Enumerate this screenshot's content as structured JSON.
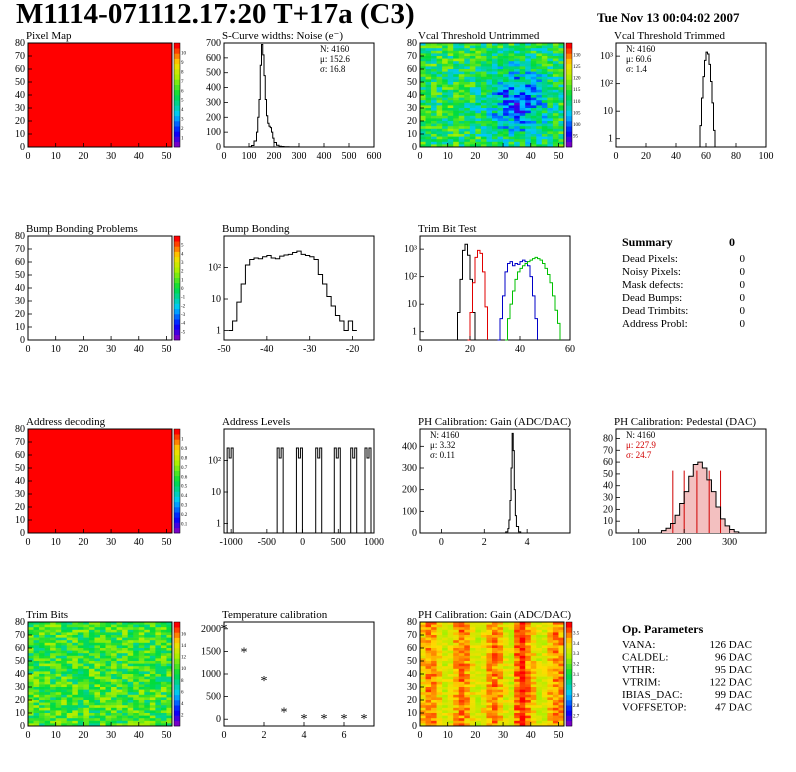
{
  "title": "M1114-071112.17:20 T+17a (C3)",
  "datestamp": "Tue Nov 13 00:04:02 2007",
  "colors": {
    "map_red": "#ff0000",
    "hist_line": "#000000",
    "trim_red": "#e00000",
    "trim_blue": "#0000c8",
    "trim_green": "#00c000",
    "ped_fill": "#d00000"
  },
  "chart_data": [
    {
      "id": "pixel-map",
      "type": "heatmap",
      "title": "Pixel Map",
      "xlim": [
        0,
        52
      ],
      "ylim": [
        0,
        80
      ],
      "xticks": [
        "0",
        "10",
        "20",
        "30",
        "40",
        "50"
      ],
      "yticks": [
        "0",
        "10",
        "20",
        "30",
        "40",
        "50",
        "60",
        "70",
        "80"
      ],
      "palette_ticks": [
        "1",
        "2",
        "3",
        "4",
        "5",
        "6",
        "7",
        "8",
        "9",
        "10"
      ],
      "fill": "uniform-red"
    },
    {
      "id": "noise",
      "type": "line",
      "title": "S-Curve widths: Noise (e⁻)",
      "xlim": [
        0,
        600
      ],
      "ylim": [
        0,
        700
      ],
      "xticks": [
        "0",
        "100",
        "200",
        "300",
        "400",
        "500",
        "600"
      ],
      "yticks": [
        "0",
        "100",
        "200",
        "300",
        "400",
        "500",
        "600",
        "700"
      ],
      "stats": [
        "N: 4160",
        "μ: 152.6",
        "σ: 16.8"
      ],
      "x": [
        90,
        100,
        110,
        120,
        130,
        135,
        140,
        145,
        150,
        155,
        160,
        165,
        170,
        175,
        180,
        185,
        190,
        195,
        200,
        210,
        220,
        230,
        240,
        260,
        280,
        300
      ],
      "y": [
        0,
        2,
        10,
        40,
        100,
        200,
        320,
        550,
        690,
        620,
        480,
        320,
        210,
        160,
        140,
        130,
        100,
        60,
        30,
        12,
        5,
        3,
        2,
        1,
        1,
        0
      ]
    },
    {
      "id": "vcal-untrimmed",
      "type": "heatmap",
      "title": "Vcal Threshold Untrimmed",
      "xlim": [
        0,
        52
      ],
      "ylim": [
        0,
        80
      ],
      "xticks": [
        "0",
        "10",
        "20",
        "30",
        "40",
        "50"
      ],
      "yticks": [
        "0",
        "10",
        "20",
        "30",
        "40",
        "50",
        "60",
        "70",
        "80"
      ],
      "palette_ticks": [
        "95",
        "100",
        "105",
        "110",
        "115",
        "120",
        "125",
        "130"
      ],
      "fill": "noisy-green-blue"
    },
    {
      "id": "vcal-trimmed",
      "type": "line",
      "title": "Vcal Threshold Trimmed",
      "xlim": [
        0,
        100
      ],
      "ylog": true,
      "ylim": [
        0.5,
        3000
      ],
      "xticks": [
        "0",
        "20",
        "40",
        "60",
        "80",
        "100"
      ],
      "yticks": [
        "1",
        "10",
        "10²",
        "10³"
      ],
      "stats": [
        "N: 4160",
        "μ: 60.6",
        "σ: 1.4"
      ],
      "x": [
        55,
        56,
        57,
        58,
        59,
        60,
        61,
        62,
        63,
        64,
        65,
        66
      ],
      "y": [
        0,
        3,
        30,
        180,
        700,
        1400,
        1200,
        500,
        120,
        20,
        2,
        0
      ]
    },
    {
      "id": "bump-problems",
      "type": "heatmap",
      "title": "Bump Bonding Problems",
      "xlim": [
        0,
        52
      ],
      "ylim": [
        0,
        80
      ],
      "xticks": [
        "0",
        "10",
        "20",
        "30",
        "40",
        "50"
      ],
      "yticks": [
        "0",
        "10",
        "20",
        "30",
        "40",
        "50",
        "60",
        "70",
        "80"
      ],
      "palette_ticks": [
        "-5",
        "-4",
        "-3",
        "-2",
        "-1",
        "0",
        "1",
        "2",
        "3",
        "4",
        "5"
      ],
      "fill": "empty"
    },
    {
      "id": "bump-bonding",
      "type": "line",
      "title": "Bump Bonding",
      "xlim": [
        -50,
        -15
      ],
      "ylog": true,
      "ylim": [
        0.5,
        1000
      ],
      "xticks": [
        "-50",
        "-40",
        "-30",
        "-20"
      ],
      "yticks": [
        "1",
        "10",
        "10²"
      ],
      "x": [
        -49,
        -48,
        -47,
        -46,
        -45,
        -44,
        -43,
        -42,
        -41,
        -40,
        -39,
        -38,
        -37,
        -36,
        -35,
        -34,
        -33,
        -32,
        -31,
        -30,
        -29,
        -28,
        -27,
        -26,
        -25,
        -24,
        -23,
        -22,
        -21,
        -20,
        -19
      ],
      "y": [
        1,
        2,
        8,
        30,
        120,
        180,
        200,
        190,
        220,
        240,
        200,
        190,
        230,
        250,
        260,
        300,
        330,
        260,
        240,
        220,
        180,
        60,
        30,
        12,
        6,
        3,
        2,
        1,
        2,
        1,
        1
      ]
    },
    {
      "id": "trim-bit-test",
      "type": "line",
      "title": "Trim Bit Test",
      "xlim": [
        0,
        60
      ],
      "ylog": true,
      "ylim": [
        0.5,
        3000
      ],
      "xticks": [
        "0",
        "20",
        "40",
        "60"
      ],
      "yticks": [
        "1",
        "10",
        "10²",
        "10³"
      ],
      "series": [
        {
          "color": "#000000",
          "x": [
            14,
            15,
            16,
            17,
            18,
            19,
            20,
            21,
            22
          ],
          "y": [
            0,
            5,
            80,
            900,
            1500,
            600,
            80,
            5,
            0
          ]
        },
        {
          "color": "#e00000",
          "x": [
            19,
            20,
            21,
            22,
            23,
            24,
            25,
            26,
            27
          ],
          "y": [
            0,
            5,
            60,
            500,
            900,
            700,
            150,
            8,
            0
          ]
        },
        {
          "color": "#0000c8",
          "x": [
            31,
            32,
            33,
            34,
            35,
            36,
            37,
            38,
            39,
            40,
            41,
            42,
            43,
            44,
            45,
            46,
            47
          ],
          "y": [
            0,
            3,
            20,
            150,
            300,
            350,
            250,
            300,
            280,
            350,
            400,
            350,
            250,
            100,
            20,
            3,
            0
          ]
        },
        {
          "color": "#00c000",
          "x": [
            34,
            35,
            36,
            37,
            38,
            39,
            40,
            41,
            42,
            43,
            44,
            45,
            46,
            47,
            48,
            49,
            50,
            51,
            52,
            53,
            54,
            55,
            56
          ],
          "y": [
            0,
            3,
            10,
            30,
            80,
            150,
            200,
            250,
            300,
            350,
            400,
            450,
            500,
            450,
            400,
            300,
            200,
            120,
            60,
            20,
            6,
            2,
            0
          ]
        }
      ]
    },
    {
      "id": "address-decoding",
      "type": "heatmap",
      "title": "Address decoding",
      "xlim": [
        0,
        52
      ],
      "ylim": [
        0,
        80
      ],
      "xticks": [
        "0",
        "10",
        "20",
        "30",
        "40",
        "50"
      ],
      "yticks": [
        "0",
        "10",
        "20",
        "30",
        "40",
        "50",
        "60",
        "70",
        "80"
      ],
      "palette_ticks": [
        "0.1",
        "0.2",
        "0.3",
        "0.4",
        "0.5",
        "0.6",
        "0.7",
        "0.8",
        "0.9",
        "1"
      ],
      "fill": "uniform-red"
    },
    {
      "id": "address-levels",
      "type": "line",
      "title": "Address Levels",
      "xlim": [
        -1100,
        1000
      ],
      "ylog": true,
      "ylim": [
        0.5,
        1000
      ],
      "xticks": [
        "-1000",
        "-500",
        "0",
        "500",
        "1000"
      ],
      "yticks": [
        "1",
        "10",
        "10²"
      ],
      "peaks": [
        -1000,
        -300,
        -30,
        240,
        500,
        730,
        930
      ],
      "peak_height": 250
    },
    {
      "id": "ph-gain",
      "type": "line",
      "title": "PH Calibration: Gain (ADC/DAC)",
      "xlim": [
        -1,
        6
      ],
      "ylim": [
        0,
        480
      ],
      "xticks": [
        "0",
        "2",
        "4"
      ],
      "yticks": [
        "0",
        "100",
        "200",
        "300",
        "400"
      ],
      "stats": [
        "N: 4160",
        "μ: 3.32",
        "σ: 0.11"
      ],
      "x": [
        2.9,
        3.0,
        3.1,
        3.15,
        3.2,
        3.25,
        3.3,
        3.35,
        3.4,
        3.45,
        3.5,
        3.6,
        3.7
      ],
      "y": [
        0,
        5,
        20,
        60,
        150,
        300,
        460,
        380,
        200,
        80,
        30,
        5,
        0
      ]
    },
    {
      "id": "ph-pedestal",
      "type": "line",
      "title": "PH Calibration: Pedestal (DAC)",
      "xlim": [
        50,
        380
      ],
      "ylim": [
        0,
        88
      ],
      "xticks": [
        "100",
        "200",
        "300"
      ],
      "yticks": [
        "0",
        "10",
        "20",
        "30",
        "40",
        "50",
        "60",
        "70",
        "80"
      ],
      "stats": [
        "N: 4160",
        "μ: 227.9",
        "σ: 24.7"
      ],
      "x": [
        140,
        150,
        160,
        170,
        180,
        190,
        200,
        210,
        220,
        230,
        240,
        250,
        260,
        270,
        280,
        290,
        300,
        310,
        320
      ],
      "y": [
        0,
        2,
        4,
        8,
        15,
        25,
        35,
        48,
        58,
        60,
        55,
        45,
        35,
        22,
        12,
        6,
        3,
        1,
        0
      ],
      "markers": [
        175,
        200,
        228,
        255,
        280
      ]
    },
    {
      "id": "trim-bits",
      "type": "heatmap",
      "title": "Trim Bits",
      "xlim": [
        0,
        52
      ],
      "ylim": [
        0,
        80
      ],
      "xticks": [
        "0",
        "10",
        "20",
        "30",
        "40",
        "50"
      ],
      "yticks": [
        "0",
        "10",
        "20",
        "30",
        "40",
        "50",
        "60",
        "70",
        "80"
      ],
      "palette_ticks": [
        "2",
        "4",
        "6",
        "8",
        "10",
        "12",
        "14",
        "16"
      ],
      "fill": "noisy-green"
    },
    {
      "id": "temperature",
      "type": "scatter",
      "title": "Temperature calibration",
      "xlim": [
        0,
        7.5
      ],
      "ylim": [
        -150,
        2150
      ],
      "xticks": [
        "0",
        "2",
        "4",
        "6"
      ],
      "yticks": [
        "0",
        "500",
        "1000",
        "1500",
        "2000"
      ],
      "x": [
        0,
        1,
        2,
        3,
        4,
        5,
        6,
        7
      ],
      "y": [
        2000,
        1470,
        850,
        150,
        0,
        0,
        0,
        0
      ]
    },
    {
      "id": "ph-gain-map",
      "type": "heatmap",
      "title": "PH Calibration: Gain (ADC/DAC)",
      "xlim": [
        0,
        52
      ],
      "ylim": [
        0,
        80
      ],
      "xticks": [
        "0",
        "10",
        "20",
        "30",
        "40",
        "50"
      ],
      "yticks": [
        "0",
        "10",
        "20",
        "30",
        "40",
        "50",
        "60",
        "70",
        "80"
      ],
      "palette_ticks": [
        "2.7",
        "2.8",
        "2.9",
        "3",
        "3.1",
        "3.2",
        "3.3",
        "3.4",
        "3.5"
      ],
      "fill": "striped-red-yellow"
    }
  ],
  "summary": {
    "heading": "Summary",
    "total": "0",
    "rows": [
      {
        "label": "Dead Pixels:",
        "value": "0"
      },
      {
        "label": "Noisy Pixels:",
        "value": "0"
      },
      {
        "label": "Mask defects:",
        "value": "0"
      },
      {
        "label": "Dead Bumps:",
        "value": "0"
      },
      {
        "label": "Dead Trimbits:",
        "value": "0"
      },
      {
        "label": "Address Probl:",
        "value": "0"
      }
    ]
  },
  "op_params": {
    "heading": "Op. Parameters",
    "rows": [
      {
        "label": "VANA:",
        "value": "126 DAC"
      },
      {
        "label": "CALDEL:",
        "value": "96 DAC"
      },
      {
        "label": "VTHR:",
        "value": "95 DAC"
      },
      {
        "label": "VTRIM:",
        "value": "122 DAC"
      },
      {
        "label": "IBIAS_DAC:",
        "value": "99 DAC"
      },
      {
        "label": "VOFFSETOP:",
        "value": "47 DAC"
      }
    ]
  }
}
